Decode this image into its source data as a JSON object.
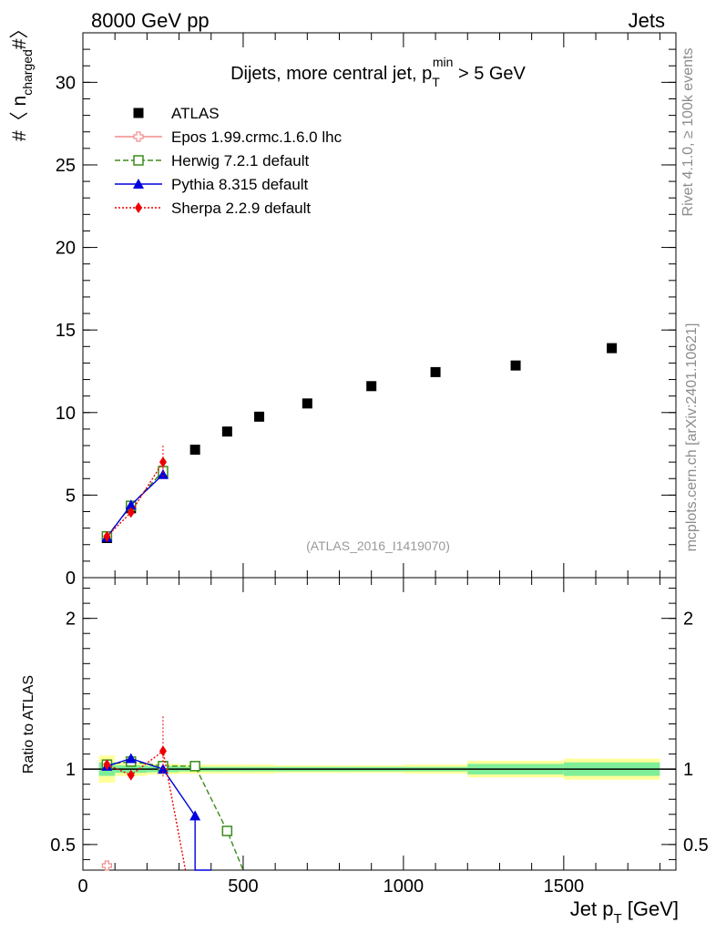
{
  "header": {
    "left": "8000 GeV pp",
    "right": "Jets"
  },
  "side_labels": {
    "rivet": "Rivet 4.1.0, ≥ 100k events",
    "source": "mcplots.cern.ch [arXiv:2401.10621]"
  },
  "chart_data": [
    {
      "type": "scatter",
      "panel": "main",
      "title_main": "Dijets, more central jet, p",
      "title_sub": "T",
      "title_sup": "min",
      "title_tail": " > 5 GeV",
      "ylabel_pre": "#〈 n",
      "ylabel_sub": "charged",
      "ylabel_post": "#〉",
      "watermark": "(ATLAS_2016_I1419070)",
      "xlim": [
        0,
        1850
      ],
      "ylim": [
        0,
        33
      ],
      "yticks": [
        "0",
        "5",
        "10",
        "15",
        "20",
        "25",
        "30"
      ],
      "ytick_values": [
        0,
        5,
        10,
        15,
        20,
        25,
        30
      ],
      "series": [
        {
          "name": "ATLAS",
          "color": "#000000",
          "marker": "square-filled",
          "x": [
            75,
            150,
            250,
            350,
            450,
            550,
            700,
            900,
            1100,
            1350,
            1650
          ],
          "y": [
            2.4,
            4.2,
            6.3,
            7.75,
            8.85,
            9.75,
            10.55,
            11.6,
            12.45,
            12.85,
            13.9
          ]
        },
        {
          "name": "Epos 1.99.crmc.1.6.0 lhc",
          "color": "#f28c8c",
          "marker": "cross-open",
          "style": "solid",
          "x": [],
          "y": []
        },
        {
          "name": "Herwig 7.2.1 default",
          "color": "#3a8c1a",
          "marker": "square-open",
          "style": "dashed",
          "x": [
            75,
            150,
            250
          ],
          "y": [
            2.5,
            4.35,
            6.45
          ]
        },
        {
          "name": "Pythia 8.315 default",
          "color": "#0000dd",
          "marker": "triangle-filled",
          "style": "solid",
          "x": [
            75,
            150,
            250
          ],
          "y": [
            2.45,
            4.4,
            6.25
          ]
        },
        {
          "name": "Sherpa 2.2.9 default",
          "color": "#ee0000",
          "marker": "diamond-filled",
          "style": "dotted",
          "x": [
            75,
            150,
            250
          ],
          "y": [
            2.5,
            3.95,
            7.0
          ]
        }
      ]
    },
    {
      "type": "line",
      "panel": "ratio",
      "ylabel": "Ratio to ATLAS",
      "xlabel_pre": "Jet p",
      "xlabel_sub": "T",
      "xlabel_post": " [GeV]",
      "xlim": [
        0,
        1850
      ],
      "ylim": [
        0.33,
        2.27
      ],
      "xticks": [
        "0",
        "500",
        "1000",
        "1500"
      ],
      "xtick_values": [
        0,
        500,
        1000,
        1500
      ],
      "yticks": [
        "0.5",
        "1",
        "2"
      ],
      "ytick_values": [
        0.5,
        1,
        2
      ],
      "bins": [
        {
          "lo": 50,
          "hi": 100,
          "stat": 0.045,
          "total": 0.09
        },
        {
          "lo": 100,
          "hi": 200,
          "stat": 0.025,
          "total": 0.045
        },
        {
          "lo": 200,
          "hi": 300,
          "stat": 0.02,
          "total": 0.035
        },
        {
          "lo": 300,
          "hi": 400,
          "stat": 0.015,
          "total": 0.03
        },
        {
          "lo": 400,
          "hi": 500,
          "stat": 0.015,
          "total": 0.03
        },
        {
          "lo": 500,
          "hi": 600,
          "stat": 0.015,
          "total": 0.03
        },
        {
          "lo": 600,
          "hi": 800,
          "stat": 0.015,
          "total": 0.025
        },
        {
          "lo": 800,
          "hi": 1000,
          "stat": 0.015,
          "total": 0.025
        },
        {
          "lo": 1000,
          "hi": 1200,
          "stat": 0.015,
          "total": 0.03
        },
        {
          "lo": 1200,
          "hi": 1500,
          "stat": 0.035,
          "total": 0.055
        },
        {
          "lo": 1500,
          "hi": 1800,
          "stat": 0.045,
          "total": 0.07
        }
      ],
      "series": [
        {
          "name": "Epos 1.99.crmc.1.6.0 lhc",
          "color": "#f28c8c",
          "marker": "cross-open",
          "style": "solid",
          "x": [
            75
          ],
          "y": [
            0.36
          ]
        },
        {
          "name": "Herwig 7.2.1 default",
          "color": "#3a8c1a",
          "marker": "square-open",
          "style": "dashed",
          "x": [
            75,
            150,
            250,
            350,
            450,
            500
          ],
          "y": [
            1.03,
            1.05,
            1.02,
            1.02,
            0.59,
            0.33
          ],
          "markers_upto": 5
        },
        {
          "name": "Pythia 8.315 default",
          "color": "#0000dd",
          "marker": "triangle-filled",
          "style": "solid",
          "x": [
            75,
            150,
            250,
            350,
            350,
            400
          ],
          "y": [
            1.02,
            1.07,
            1.0,
            0.69,
            0.33,
            0.33
          ],
          "markers_upto": 4
        },
        {
          "name": "Sherpa 2.2.9 default",
          "color": "#ee0000",
          "marker": "diamond-filled",
          "style": "dotted",
          "x": [
            75,
            150,
            250,
            320
          ],
          "y": [
            1.03,
            0.96,
            1.12,
            0.33
          ],
          "markers_upto": 3
        }
      ]
    }
  ]
}
